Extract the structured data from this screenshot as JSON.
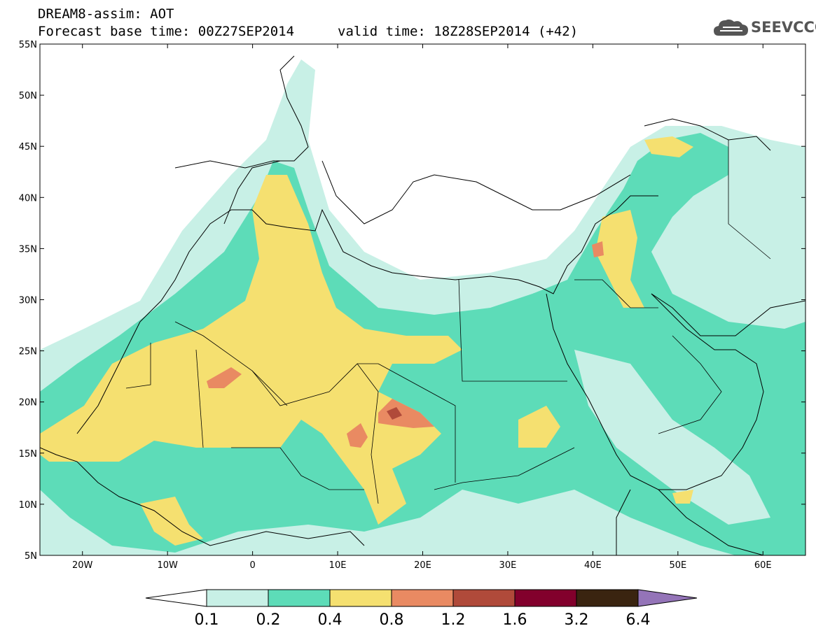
{
  "header": {
    "line1": "DREAM8-assim: AOT",
    "line2": "Forecast base time: 00Z27SEP2014",
    "valid": "valid time: 18Z28SEP2014 (+42)"
  },
  "logo": {
    "text": "SEEVCCC",
    "icon": "cloud-logo-icon",
    "color": "#555555"
  },
  "map": {
    "lat_labels": [
      "55N",
      "50N",
      "45N",
      "40N",
      "35N",
      "30N",
      "25N",
      "20N",
      "15N",
      "10N",
      "5N"
    ],
    "lat_values": [
      55,
      50,
      45,
      40,
      35,
      30,
      25,
      20,
      15,
      10,
      5
    ],
    "lon_labels": [
      "20W",
      "10W",
      "0",
      "10E",
      "20E",
      "30E",
      "40E",
      "50E",
      "60E"
    ],
    "lon_values": [
      -20,
      -10,
      0,
      10,
      20,
      30,
      40,
      50,
      60
    ],
    "lon_range": [
      -25,
      65
    ],
    "lat_range": [
      5,
      55
    ],
    "variable": "AOT"
  },
  "colorbar": {
    "labels": [
      "0.1",
      "0.2",
      "0.4",
      "0.8",
      "1.2",
      "1.6",
      "3.2",
      "6.4"
    ],
    "colors": [
      "#c8f0e6",
      "#5ddcb8",
      "#f5e070",
      "#e98a62",
      "#b04a3a",
      "#82002c",
      "#3a2410",
      "#9474b8"
    ],
    "under_color": "#ffffff",
    "over_color": "#9474b8"
  }
}
